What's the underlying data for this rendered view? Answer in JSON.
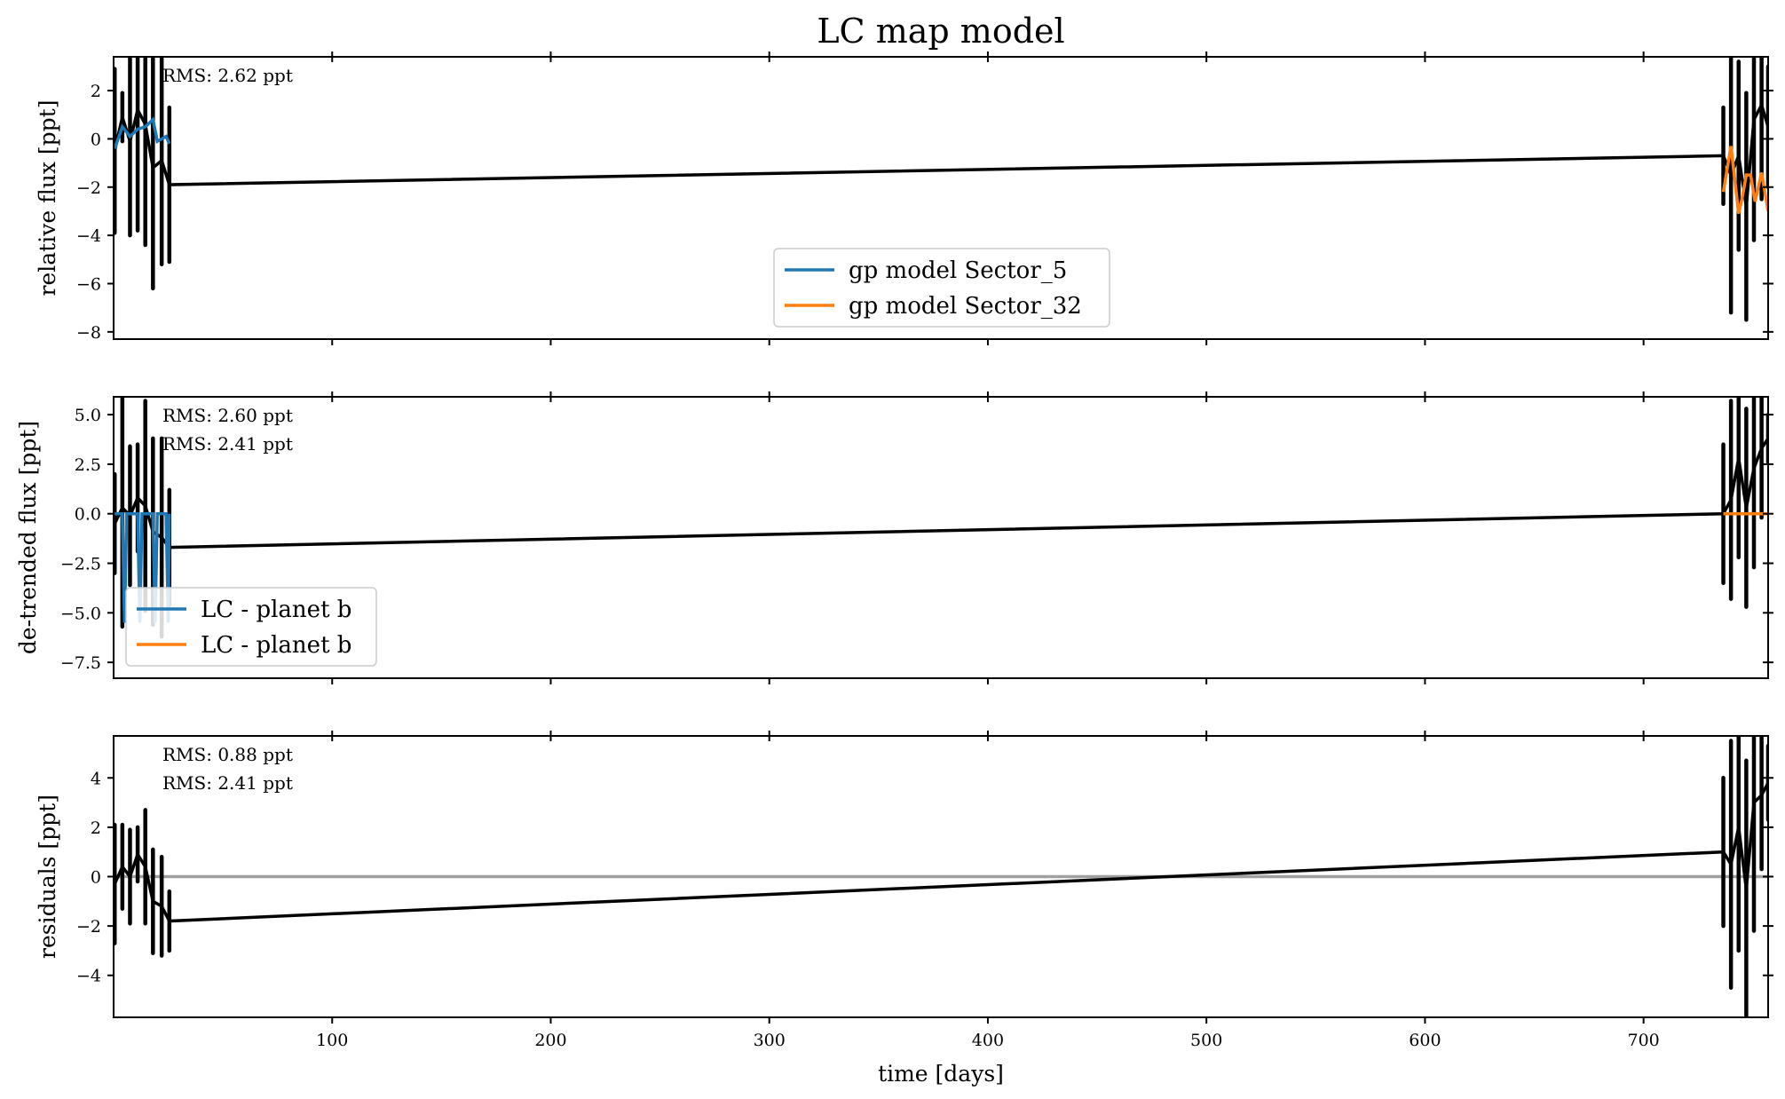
{
  "figure": {
    "title": "LC map model",
    "xlabel": "time [days]"
  },
  "chart_data": [
    {
      "type": "line",
      "ylabel": "relative flux [ppt]",
      "xlim": [
        0,
        757
      ],
      "ylim": [
        -8.3,
        3.4
      ],
      "xticks": [
        100,
        200,
        300,
        400,
        500,
        600,
        700
      ],
      "yticks": [
        2,
        0,
        -2,
        -4,
        -6,
        -8
      ],
      "ytick_labels": [
        "2",
        "0",
        "−2",
        "−4",
        "−6",
        "−8"
      ],
      "annotations": [
        "RMS: 2.62 ppt"
      ],
      "legend": {
        "position": "lower-center",
        "entries": [
          "gp model Sector_5",
          "gp model Sector_32"
        ]
      },
      "data": {
        "x": [
          0.5,
          4.0,
          7.5,
          11.0,
          14.5,
          18.0,
          22.0,
          25.5,
          736.5,
          740.0,
          743.5,
          747.0,
          750.5,
          754.0,
          757.0
        ],
        "y": [
          -0.5,
          0.9,
          -0.1,
          1.2,
          0.6,
          -1.2,
          -0.9,
          -1.9,
          -0.7,
          -1.5,
          -0.7,
          -2.8,
          0.8,
          1.4,
          0.5
        ],
        "yerr": [
          3.4,
          1.0,
          3.9,
          5.0,
          5.0,
          5.0,
          4.3,
          3.2,
          2.0,
          5.7,
          3.9,
          4.7,
          5.0,
          3.9,
          2.5
        ]
      },
      "series": [
        {
          "name": "gp model Sector_5",
          "color": "#1f77b4",
          "x": [
            0.5,
            4.0,
            7.5,
            11.0,
            14.5,
            18.0,
            20.0,
            22.0,
            24.0,
            25.5
          ],
          "y": [
            -0.4,
            0.5,
            0.1,
            0.4,
            0.5,
            0.8,
            -0.1,
            0.0,
            0.1,
            -0.2
          ]
        },
        {
          "name": "gp model Sector_32",
          "color": "#ff7f0e",
          "x": [
            736.5,
            740.0,
            743.5,
            745.0,
            747.0,
            749.0,
            751.0,
            754.0,
            757.0
          ],
          "y": [
            -2.2,
            -0.3,
            -3.1,
            -2.5,
            -1.5,
            -1.5,
            -2.6,
            -1.4,
            -3.0
          ]
        }
      ]
    },
    {
      "type": "line",
      "ylabel": "de-trended flux [ppt]",
      "xlim": [
        0,
        757
      ],
      "ylim": [
        -8.3,
        5.9
      ],
      "xticks": [
        100,
        200,
        300,
        400,
        500,
        600,
        700
      ],
      "yticks": [
        5.0,
        2.5,
        0.0,
        -2.5,
        -5.0,
        -7.5
      ],
      "ytick_labels": [
        "5.0",
        "2.5",
        "0.0",
        "−2.5",
        "−5.0",
        "−7.5"
      ],
      "annotations": [
        "RMS: 2.60 ppt",
        "RMS: 2.41 ppt"
      ],
      "legend": {
        "position": "lower-left",
        "entries": [
          "LC - planet b",
          "LC - planet b"
        ]
      },
      "data": {
        "x": [
          0.5,
          4.0,
          7.5,
          11.0,
          14.5,
          18.0,
          22.0,
          25.5,
          736.5,
          740.0,
          743.5,
          747.0,
          750.5,
          754.0,
          757.0
        ],
        "y": [
          -0.5,
          0.3,
          -0.1,
          0.8,
          0.4,
          -0.9,
          -1.2,
          -1.7,
          0.0,
          0.7,
          2.8,
          0.3,
          2.3,
          3.3,
          3.8
        ],
        "yerr": [
          2.5,
          6.0,
          3.5,
          2.7,
          5.3,
          4.7,
          5.0,
          2.9,
          3.5,
          5.0,
          5.0,
          5.0,
          5.0,
          3.5,
          1.2
        ]
      },
      "series": [
        {
          "name": "LC - planet b",
          "color": "#1f77b4",
          "x": [
            0.5,
            4.0,
            5.0,
            6.0,
            7.5,
            11.0,
            12.0,
            13.0,
            14.5,
            18.0,
            19.0,
            20.0,
            22.0,
            24.0,
            25.0,
            25.5
          ],
          "y": [
            0.0,
            0.0,
            -5.5,
            0.0,
            0.0,
            0.0,
            -5.5,
            0.0,
            0.0,
            0.0,
            -5.5,
            0.0,
            0.0,
            0.0,
            -5.5,
            0.0
          ]
        },
        {
          "name": "LC - planet b",
          "color": "#ff7f0e",
          "x": [
            736.5,
            757.0
          ],
          "y": [
            0.0,
            0.0
          ]
        }
      ]
    },
    {
      "type": "line",
      "ylabel": "residuals [ppt]",
      "xlim": [
        0,
        757
      ],
      "ylim": [
        -5.7,
        5.7
      ],
      "xticks": [
        100,
        200,
        300,
        400,
        500,
        600,
        700
      ],
      "xtick_labels": [
        "100",
        "200",
        "300",
        "400",
        "500",
        "600",
        "700"
      ],
      "yticks": [
        4,
        2,
        0,
        -2,
        -4
      ],
      "ytick_labels": [
        "4",
        "2",
        "0",
        "−2",
        "−4"
      ],
      "annotations": [
        "RMS: 0.88 ppt",
        "RMS: 2.41 ppt"
      ],
      "data": {
        "x": [
          0.5,
          4.0,
          7.5,
          11.0,
          14.5,
          18.0,
          22.0,
          25.5,
          736.5,
          740.0,
          743.5,
          747.0,
          750.5,
          754.0,
          757.0
        ],
        "y": [
          -0.3,
          0.4,
          0.0,
          0.9,
          0.4,
          -1.0,
          -1.2,
          -1.8,
          1.0,
          0.5,
          2.0,
          -0.5,
          3.0,
          3.3,
          3.8
        ],
        "yerr": [
          2.4,
          1.7,
          1.9,
          1.1,
          2.3,
          2.1,
          2.0,
          1.2,
          3.0,
          5.0,
          5.0,
          5.2,
          5.2,
          3.0,
          1.5
        ]
      },
      "series": [
        {
          "color": "#a0a0a0",
          "x": [
            0,
            757
          ],
          "y": [
            0,
            0
          ]
        }
      ]
    }
  ]
}
